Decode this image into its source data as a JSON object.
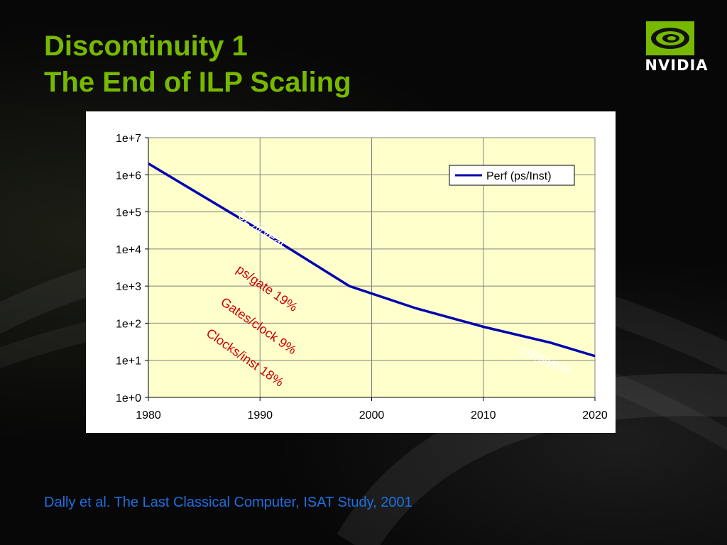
{
  "slide": {
    "title_line1": "Discontinuity 1",
    "title_line2": "The End of ILP Scaling",
    "logo_text": "NVIDIA",
    "citation": "Dally et al. The Last Classical Computer, ISAT Study, 2001"
  },
  "colors": {
    "title": "#77b800",
    "citation": "#1d6fe0",
    "series_line": "#0000b0",
    "plot_bg": "#ffffcc",
    "annotation_red": "#cc0000",
    "annotation_white": "#ffffff"
  },
  "chart_data": {
    "type": "line",
    "title": "",
    "xlabel": "",
    "ylabel": "",
    "y_scale": "log",
    "xlim": [
      1980,
      2020
    ],
    "ylim": [
      1,
      10000000
    ],
    "x_ticks": [
      1980,
      1990,
      2000,
      2010,
      2020
    ],
    "y_ticks": [
      1,
      10,
      100,
      1000,
      10000,
      100000,
      1000000,
      10000000
    ],
    "y_tick_labels": [
      "1e+0",
      "1e+1",
      "1e+2",
      "1e+3",
      "1e+4",
      "1e+5",
      "1e+6",
      "1e+7"
    ],
    "grid": true,
    "legend": "top-right",
    "series": [
      {
        "name": "Perf (ps/Inst)",
        "x": [
          1980,
          1990,
          1998,
          2004,
          2010,
          2016,
          2020
        ],
        "y": [
          2000000,
          32000,
          1000,
          250,
          80,
          30,
          13
        ]
      }
    ],
    "annotations": [
      {
        "text": "52%/year",
        "x": 1988,
        "y": 70000,
        "angle": 35,
        "color": "white"
      },
      {
        "text": "ps/gate 19%",
        "x": 1987.8,
        "y": 2500,
        "angle": 35,
        "color": "red"
      },
      {
        "text": "Gates/clock 9%",
        "x": 1986.4,
        "y": 330,
        "angle": 35,
        "color": "red"
      },
      {
        "text": "Clocks/inst 18%",
        "x": 1985.1,
        "y": 48,
        "angle": 35,
        "color": "red"
      },
      {
        "text": "19%/year",
        "x": 2013.2,
        "y": 15,
        "angle": 22,
        "color": "white"
      }
    ]
  }
}
